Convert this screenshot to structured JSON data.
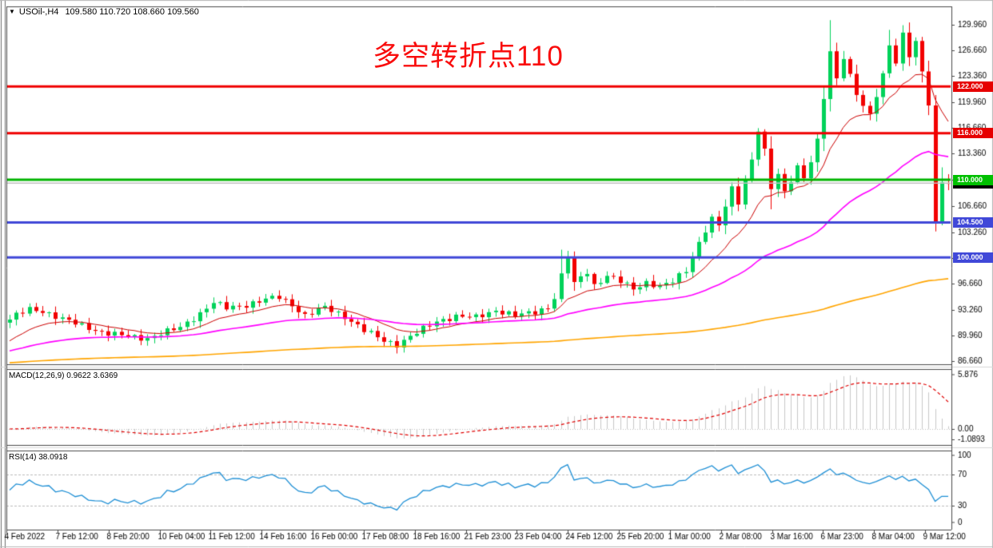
{
  "window": {
    "symbol_dropdown_icon": "▼",
    "symbol_timeframe": "USOil-,H4",
    "ohlc_text": "109.580 110.720 108.660 109.560"
  },
  "annotation": {
    "text": "多空转折点110",
    "color": "#F90D0D"
  },
  "chart_data": {
    "type": "candlestick",
    "symbol": "USOil-",
    "timeframe": "H4",
    "current_bar": {
      "open": 109.58,
      "high": 110.72,
      "low": 108.66,
      "close": 109.56
    },
    "bar_count": 144,
    "ylim": [
      86.35,
      132.22
    ],
    "up_color": "#00D25A",
    "down_color": "#F20000",
    "close_keyframes": [
      [
        0,
        92.0
      ],
      [
        1,
        92.6
      ],
      [
        3,
        93.3
      ],
      [
        5,
        93.1
      ],
      [
        8,
        92.1
      ],
      [
        11,
        91.2
      ],
      [
        14,
        90.4
      ],
      [
        18,
        89.8
      ],
      [
        21,
        89.6
      ],
      [
        23,
        90.2
      ],
      [
        26,
        91.0
      ],
      [
        29,
        92.8
      ],
      [
        31,
        94.2
      ],
      [
        33,
        93.5
      ],
      [
        36,
        93.9
      ],
      [
        39,
        94.6
      ],
      [
        41,
        94.9
      ],
      [
        43,
        93.9
      ],
      [
        45,
        92.5
      ],
      [
        48,
        93.6
      ],
      [
        51,
        92.4
      ],
      [
        54,
        90.6
      ],
      [
        57,
        89.3
      ],
      [
        59,
        88.8
      ],
      [
        62,
        90.3
      ],
      [
        65,
        91.8
      ],
      [
        68,
        92.4
      ],
      [
        71,
        92.3
      ],
      [
        74,
        93.2
      ],
      [
        77,
        92.5
      ],
      [
        80,
        93.0
      ],
      [
        82,
        93.6
      ],
      [
        83,
        94.8
      ],
      [
        84,
        97.6
      ],
      [
        85,
        100.2
      ],
      [
        86,
        96.6
      ],
      [
        87,
        97.5
      ],
      [
        88,
        98.2
      ],
      [
        89,
        96.4
      ],
      [
        91,
        97.6
      ],
      [
        93,
        96.9
      ],
      [
        95,
        96.0
      ],
      [
        97,
        96.8
      ],
      [
        99,
        96.2
      ],
      [
        101,
        96.9
      ],
      [
        103,
        98.4
      ],
      [
        104,
        100.1
      ],
      [
        105,
        101.9
      ],
      [
        106,
        103.5
      ],
      [
        107,
        104.9
      ],
      [
        108,
        104.1
      ],
      [
        109,
        106.6
      ],
      [
        110,
        108.9
      ],
      [
        111,
        107.2
      ],
      [
        112,
        109.9
      ],
      [
        113,
        112.6
      ],
      [
        114,
        116.4
      ],
      [
        115,
        113.6
      ],
      [
        116,
        108.9
      ],
      [
        117,
        110.7
      ],
      [
        118,
        108.4
      ],
      [
        119,
        110.1
      ],
      [
        120,
        111.7
      ],
      [
        121,
        110.3
      ],
      [
        122,
        112.3
      ],
      [
        123,
        114.9
      ],
      [
        124,
        120.6
      ],
      [
        125,
        126.4
      ],
      [
        126,
        123.1
      ],
      [
        127,
        125.9
      ],
      [
        128,
        123.4
      ],
      [
        129,
        121.1
      ],
      [
        130,
        119.4
      ],
      [
        131,
        118.2
      ],
      [
        132,
        120.9
      ],
      [
        133,
        123.5
      ],
      [
        134,
        127.5
      ],
      [
        135,
        125.2
      ],
      [
        136,
        128.7
      ],
      [
        137,
        126.0
      ],
      [
        138,
        127.6
      ],
      [
        139,
        123.8
      ],
      [
        140,
        119.8
      ],
      [
        141,
        104.3
      ],
      [
        142,
        110.0
      ],
      [
        143,
        109.56
      ]
    ],
    "candle_overrides": {
      "84": {
        "h": 101.0
      },
      "85": {
        "h": 100.85
      },
      "114": {
        "h": 116.65
      },
      "116": {
        "l": 106.2
      },
      "125": {
        "h": 130.55
      },
      "134": {
        "h": 129.3
      },
      "136": {
        "h": 129.9
      },
      "139": {
        "h": 128.4
      },
      "141": {
        "l": 103.35
      },
      "142": {
        "h": 111.6
      },
      "143": {
        "o": 109.58,
        "h": 110.72,
        "l": 108.66,
        "c": 109.56
      }
    },
    "moving_averages": [
      {
        "period": 13,
        "color": "#CC0000",
        "seed": 88.8,
        "width": 1.0
      },
      {
        "period": 48,
        "color": "#FF00FF",
        "seed": 87.8,
        "width": 1.6
      },
      {
        "period": 250,
        "color": "#FFA500",
        "seed": 86.4,
        "width": 1.6
      }
    ],
    "levels": [
      {
        "price": 122.0,
        "label": "122.000",
        "line_color": "#F00000",
        "badge_color": "#E60000",
        "line_width": 3
      },
      {
        "price": 116.0,
        "label": "116.000",
        "line_color": "#F00000",
        "badge_color": "#E60000",
        "line_width": 3
      },
      {
        "price": 110.0,
        "label": "110.000",
        "line_color": "#00B400",
        "badge_color": "#00C000",
        "line_width": 3
      },
      {
        "price": 104.5,
        "label": "104.500",
        "line_color": "#4048D8",
        "badge_color": "#4048D8",
        "line_width": 3
      },
      {
        "price": 100.0,
        "label": "100.000",
        "line_color": "#4048D8",
        "badge_color": "#4048D8",
        "line_width": 3
      }
    ],
    "current_price_line": {
      "price": 109.56,
      "label": "109.560",
      "line_color": "#C0C0C0",
      "badge_color": "#000000"
    },
    "y_axis_ticks": [
      "129.960",
      "126.660",
      "123.360",
      "119.960",
      "116.660",
      "113.360",
      "109.960",
      "106.660",
      "103.260",
      "99.960",
      "96.660",
      "93.260",
      "89.960",
      "86.660"
    ],
    "y_axis_tick_prices": [
      129.96,
      126.66,
      123.36,
      119.96,
      116.66,
      113.36,
      109.96,
      106.66,
      103.26,
      99.96,
      96.66,
      93.26,
      89.96,
      86.66
    ],
    "x_axis_labels": [
      "4 Feb 2022",
      "7 Feb 12:00",
      "8 Feb 20:00",
      "10 Feb 04:00",
      "11 Feb 12:00",
      "14 Feb 16:00",
      "16 Feb 00:00",
      "17 Feb 08:00",
      "18 Feb 16:00",
      "21 Feb 23:00",
      "23 Feb 04:00",
      "24 Feb 12:00",
      "25 Feb 20:00",
      "1 Mar 00:00",
      "2 Mar 08:00",
      "3 Mar 16:00",
      "6 Mar 23:00",
      "8 Mar 04:00",
      "9 Mar 12:00"
    ],
    "macd": {
      "label": "MACD(12,26,9) 0.9622 3.6369",
      "fast": 12,
      "slow": 26,
      "signal": 9,
      "value": 0.9622,
      "signal_value": 3.6369,
      "axis_labels": [
        "5.876",
        "0.00",
        "-1.0893"
      ],
      "axis_values": [
        5.876,
        0,
        -1.0893
      ],
      "ylim": [
        -1.7,
        6.3
      ],
      "hist_color": "#C8C8C8",
      "signal_color": "#E00000"
    },
    "rsi": {
      "label": "RSI(14) 38.0918",
      "period": 14,
      "value": 38.0918,
      "axis_labels": [
        "100",
        "70",
        "30",
        "0"
      ],
      "axis_values": [
        100,
        70,
        30,
        0
      ],
      "levels": [
        70,
        30
      ],
      "ylim": [
        0,
        100
      ],
      "line_color": "#1E8FD5",
      "level_color": "#BBBBBB"
    }
  }
}
